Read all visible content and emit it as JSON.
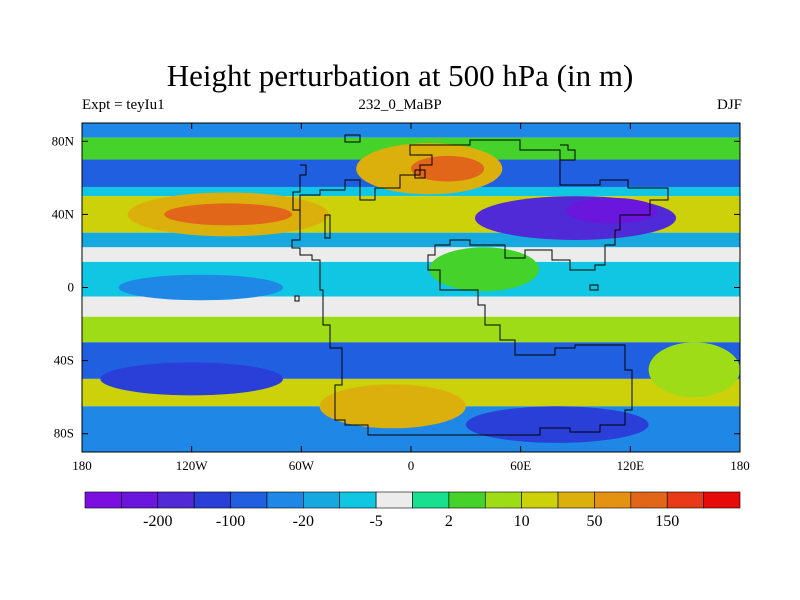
{
  "chart_data": {
    "type": "heatmap",
    "title": "Height perturbation at 500 hPa (in m)",
    "subtitle_left": "Expt = teyIu1",
    "subtitle_center": "232_0_MaBP",
    "subtitle_right": "DJF",
    "x_range": [
      -180,
      180
    ],
    "y_range": [
      -90,
      90
    ],
    "x_ticks": [
      {
        "value": -180,
        "label": "180"
      },
      {
        "value": -120,
        "label": "120W"
      },
      {
        "value": -60,
        "label": "60W"
      },
      {
        "value": 0,
        "label": "0"
      },
      {
        "value": 60,
        "label": "60E"
      },
      {
        "value": 120,
        "label": "120E"
      },
      {
        "value": 180,
        "label": "180"
      }
    ],
    "y_ticks": [
      {
        "value": 80,
        "label": "80N"
      },
      {
        "value": 40,
        "label": "40N"
      },
      {
        "value": 0,
        "label": "0"
      },
      {
        "value": -40,
        "label": "40S"
      },
      {
        "value": -80,
        "label": "80S"
      }
    ],
    "colorbar": {
      "colors": [
        "#7a0fe0",
        "#6a16dc",
        "#4f2ad6",
        "#2a3fd8",
        "#1f5fe0",
        "#1f88e6",
        "#18a8e0",
        "#10c6e2",
        "#ececec",
        "#18e090",
        "#45d22a",
        "#9edc18",
        "#ccd10a",
        "#dcb00c",
        "#e39212",
        "#e2661a",
        "#e83a18",
        "#e60a0a"
      ],
      "labels": [
        {
          "boundary": 2,
          "text": "-200"
        },
        {
          "boundary": 4,
          "text": "-100"
        },
        {
          "boundary": 6,
          "text": "-20"
        },
        {
          "boundary": 8,
          "text": "-5"
        },
        {
          "boundary": 10,
          "text": "2"
        },
        {
          "boundary": 12,
          "text": "10"
        },
        {
          "boundary": 14,
          "text": "50"
        },
        {
          "boundary": 16,
          "text": "150"
        }
      ]
    },
    "field_bands": [
      {
        "lat_top": 90,
        "lat_bottom": 82,
        "color": "#1f88e6"
      },
      {
        "lat_top": 82,
        "lat_bottom": 70,
        "color": "#45d22a"
      },
      {
        "lat_top": 70,
        "lat_bottom": 55,
        "color": "#1f5fe0"
      },
      {
        "lat_top": 55,
        "lat_bottom": 50,
        "color": "#10c6e2"
      },
      {
        "lat_top": 50,
        "lat_bottom": 30,
        "color": "#ccd10a"
      },
      {
        "lat_top": 30,
        "lat_bottom": 22,
        "color": "#18a8e0"
      },
      {
        "lat_top": 22,
        "lat_bottom": 14,
        "color": "#ececec"
      },
      {
        "lat_top": 14,
        "lat_bottom": -5,
        "color": "#10c6e2"
      },
      {
        "lat_top": -5,
        "lat_bottom": -16,
        "color": "#ececec"
      },
      {
        "lat_top": -16,
        "lat_bottom": -30,
        "color": "#9edc18"
      },
      {
        "lat_top": -30,
        "lat_bottom": -50,
        "color": "#1f5fe0"
      },
      {
        "lat_top": -50,
        "lat_bottom": -65,
        "color": "#ccd10a"
      },
      {
        "lat_top": -65,
        "lat_bottom": -90,
        "color": "#1f88e6"
      }
    ],
    "field_blobs": [
      {
        "lon": 90,
        "lat": 38,
        "rlon": 55,
        "rlat": 12,
        "color": "#4f2ad6"
      },
      {
        "lon": 110,
        "lat": 42,
        "rlon": 25,
        "rlat": 7,
        "color": "#6a16dc"
      },
      {
        "lon": -100,
        "lat": 40,
        "rlon": 55,
        "rlat": 12,
        "color": "#dcb00c"
      },
      {
        "lon": -100,
        "lat": 40,
        "rlon": 35,
        "rlat": 6,
        "color": "#e2661a"
      },
      {
        "lon": 10,
        "lat": 65,
        "rlon": 40,
        "rlat": 14,
        "color": "#dcb00c"
      },
      {
        "lon": 20,
        "lat": 65,
        "rlon": 20,
        "rlat": 7,
        "color": "#e2661a"
      },
      {
        "lon": -115,
        "lat": 0,
        "rlon": 45,
        "rlat": 7,
        "color": "#1f88e6"
      },
      {
        "lon": -120,
        "lat": -50,
        "rlon": 50,
        "rlat": 9,
        "color": "#2a3fd8"
      },
      {
        "lon": -10,
        "lat": -65,
        "rlon": 40,
        "rlat": 12,
        "color": "#dcb00c"
      },
      {
        "lon": 80,
        "lat": -75,
        "rlon": 50,
        "rlat": 10,
        "color": "#2a3fd8"
      },
      {
        "lon": 155,
        "lat": -45,
        "rlon": 25,
        "rlat": 15,
        "color": "#9edc18"
      },
      {
        "lon": 40,
        "lat": 10,
        "rlon": 30,
        "rlat": 12,
        "color": "#45d22a"
      }
    ]
  }
}
